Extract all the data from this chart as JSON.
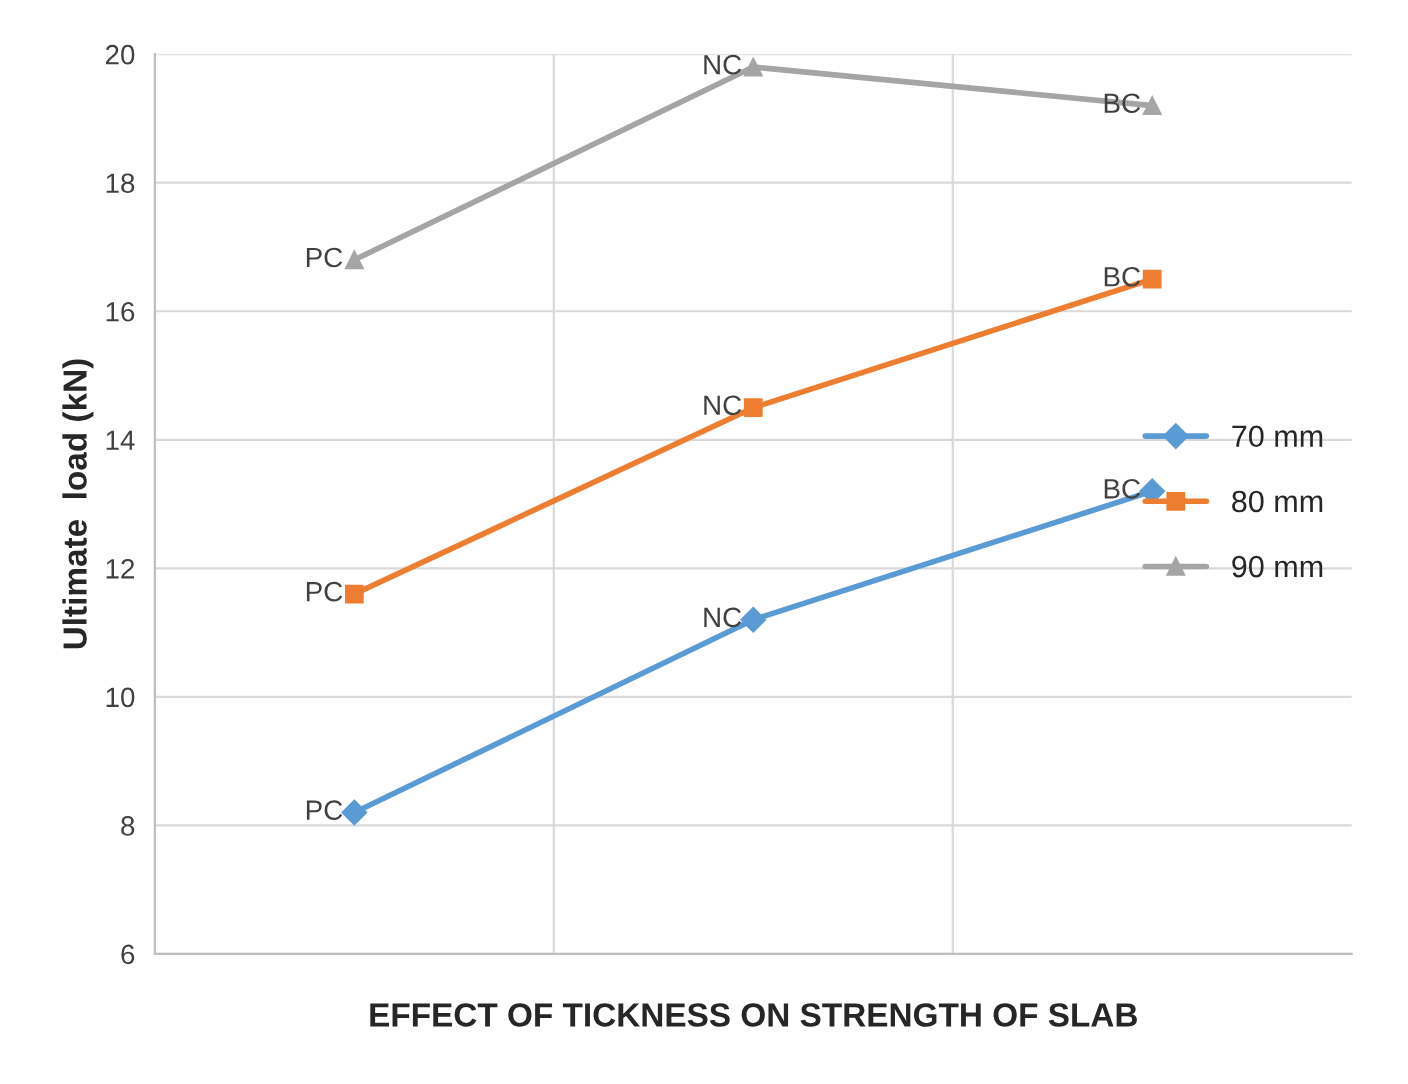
{
  "chart_data": {
    "type": "line",
    "xlabel": "EFFECT OF TICKNESS ON STRENGTH OF SLAB",
    "ylabel": "Ultimate  load (kN)",
    "categories": [
      null,
      null,
      null
    ],
    "series": [
      {
        "name": "70 mm",
        "color": "#5b9bd5",
        "marker": "diamond",
        "values": [
          8.2,
          11.2,
          13.2
        ],
        "value_labels": [
          "PC",
          "NC",
          "BC"
        ]
      },
      {
        "name": "80 mm",
        "color": "#ed7d31",
        "marker": "square",
        "values": [
          11.6,
          14.5,
          16.5
        ],
        "value_labels": [
          "PC",
          "NC",
          "BC"
        ]
      },
      {
        "name": "90 mm",
        "color": "#a5a5a5",
        "marker": "triangle",
        "values": [
          16.8,
          19.8,
          19.2
        ],
        "value_labels": [
          "PC",
          "NC",
          "BC"
        ]
      }
    ],
    "ylim": [
      6,
      20
    ],
    "yticks": [
      6,
      8,
      10,
      12,
      14,
      16,
      18,
      20
    ],
    "grid": true,
    "legend": "center right"
  }
}
